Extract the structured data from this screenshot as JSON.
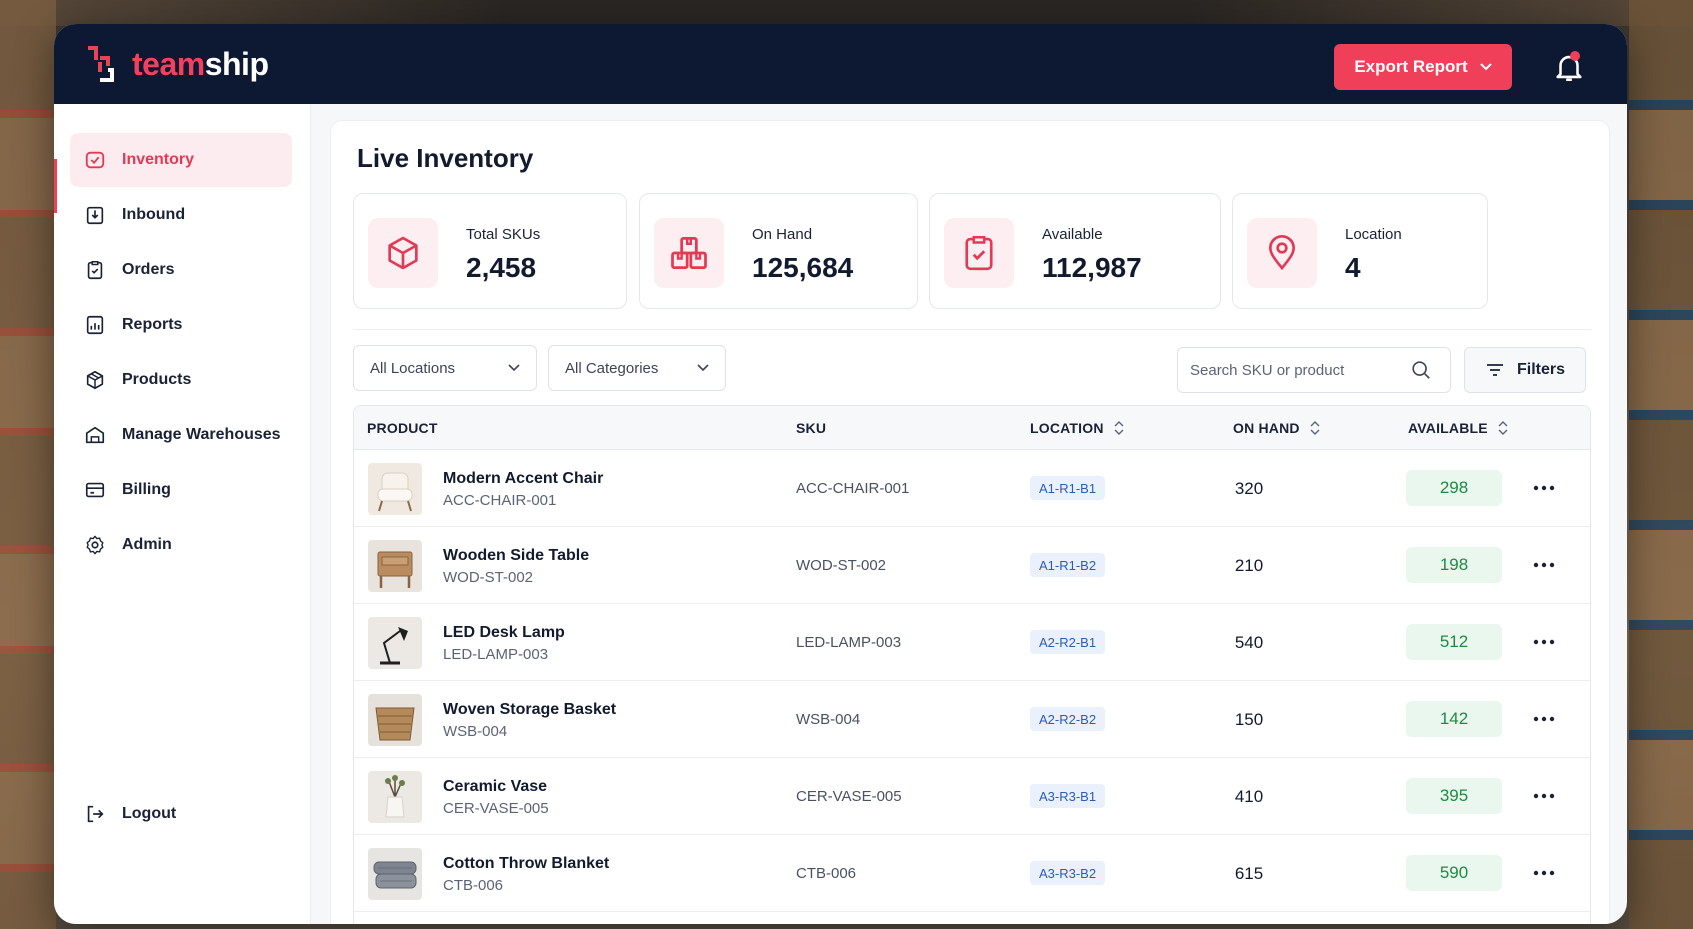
{
  "brand": {
    "name_part1": "team",
    "name_part2": "ship",
    "accent": "#ef3f59",
    "navy": "#0d1833"
  },
  "header": {
    "export_label": "Export Report",
    "bell_icon": "bell-icon",
    "has_notification": true
  },
  "sidebar": {
    "items": [
      {
        "label": "Inventory",
        "icon": "inventory-icon",
        "active": true
      },
      {
        "label": "Inbound",
        "icon": "inbound-icon"
      },
      {
        "label": "Orders",
        "icon": "orders-icon"
      },
      {
        "label": "Reports",
        "icon": "reports-icon"
      },
      {
        "label": "Products",
        "icon": "products-icon"
      },
      {
        "label": "Manage Warehouses",
        "icon": "warehouse-icon"
      },
      {
        "label": "Billing",
        "icon": "billing-icon"
      },
      {
        "label": "Admin",
        "icon": "admin-icon"
      }
    ],
    "logout_label": "Logout"
  },
  "main": {
    "title": "Live Inventory",
    "stats": [
      {
        "label": "Total SKUs",
        "value": "2,458",
        "icon": "box-icon"
      },
      {
        "label": "On Hand",
        "value": "125,684",
        "icon": "stacked-boxes-icon"
      },
      {
        "label": "Available",
        "value": "112,987",
        "icon": "clipboard-check-icon"
      },
      {
        "label": "Location",
        "value": "4",
        "icon": "map-pin-icon"
      }
    ],
    "filters": {
      "location_select": "All Locations",
      "category_select": "All Categories",
      "search_placeholder": "Search SKU or product",
      "filters_label": "Filters"
    },
    "table": {
      "columns": {
        "product": "PRODUCT",
        "sku": "SKU",
        "location": "LOCATION",
        "on_hand": "ON HAND",
        "available": "AVAILABLE"
      },
      "rows": [
        {
          "name": "Modern Accent Chair",
          "sub": "ACC-CHAIR-001",
          "sku": "ACC-CHAIR-001",
          "location": "A1-R1-B1",
          "on_hand": "320",
          "available": "298"
        },
        {
          "name": "Wooden Side Table",
          "sub": "WOD-ST-002",
          "sku": "WOD-ST-002",
          "location": "A1-R1-B2",
          "on_hand": "210",
          "available": "198"
        },
        {
          "name": "LED Desk Lamp",
          "sub": "LED-LAMP-003",
          "sku": "LED-LAMP-003",
          "location": "A2-R2-B1",
          "on_hand": "540",
          "available": "512"
        },
        {
          "name": "Woven Storage Basket",
          "sub": "WSB-004",
          "sku": "WSB-004",
          "location": "A2-R2-B2",
          "on_hand": "150",
          "available": "142"
        },
        {
          "name": "Ceramic Vase",
          "sub": "CER-VASE-005",
          "sku": "CER-VASE-005",
          "location": "A3-R3-B1",
          "on_hand": "410",
          "available": "395"
        },
        {
          "name": "Cotton Throw Blanket",
          "sub": "CTB-006",
          "sku": "CTB-006",
          "location": "A3-R3-B2",
          "on_hand": "615",
          "available": "590"
        }
      ]
    }
  }
}
